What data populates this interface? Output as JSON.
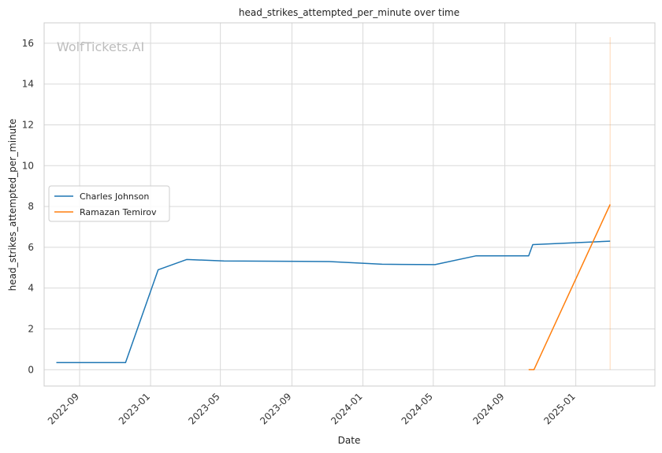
{
  "chart_data": {
    "type": "line",
    "title": "head_strikes_attempted_per_minute over time",
    "xlabel": "Date",
    "ylabel": "head_strikes_attempted_per_minute",
    "watermark": "WolfTickets.AI",
    "x_ticks": [
      "2022-09",
      "2023-01",
      "2023-05",
      "2023-09",
      "2024-01",
      "2024-05",
      "2024-09",
      "2025-01"
    ],
    "y_ticks": [
      0,
      2,
      4,
      6,
      8,
      10,
      12,
      14,
      16
    ],
    "xlim": [
      "2022-07-02",
      "2025-05-17"
    ],
    "ylim": [
      -0.8,
      17.0
    ],
    "grid": true,
    "legend_position": "center-left",
    "series": [
      {
        "name": "Charles Johnson",
        "color": "#1f77b4",
        "points": [
          [
            "2022-07-23",
            0.35
          ],
          [
            "2022-11-19",
            0.35
          ],
          [
            "2023-01-14",
            4.9
          ],
          [
            "2023-03-04",
            5.4
          ],
          [
            "2023-05-07",
            5.33
          ],
          [
            "2023-11-04",
            5.3
          ],
          [
            "2024-02-03",
            5.17
          ],
          [
            "2024-05-04",
            5.15
          ],
          [
            "2024-07-13",
            5.58
          ],
          [
            "2024-10-12",
            5.58
          ],
          [
            "2024-10-19",
            6.13
          ],
          [
            "2025-03-01",
            6.3
          ]
        ]
      },
      {
        "name": "Ramazan Temirov",
        "color": "#ff7f0e",
        "points": [
          [
            "2024-10-12",
            0.0
          ],
          [
            "2024-10-21",
            0.0
          ],
          [
            "2025-03-01",
            8.1
          ]
        ]
      }
    ]
  }
}
